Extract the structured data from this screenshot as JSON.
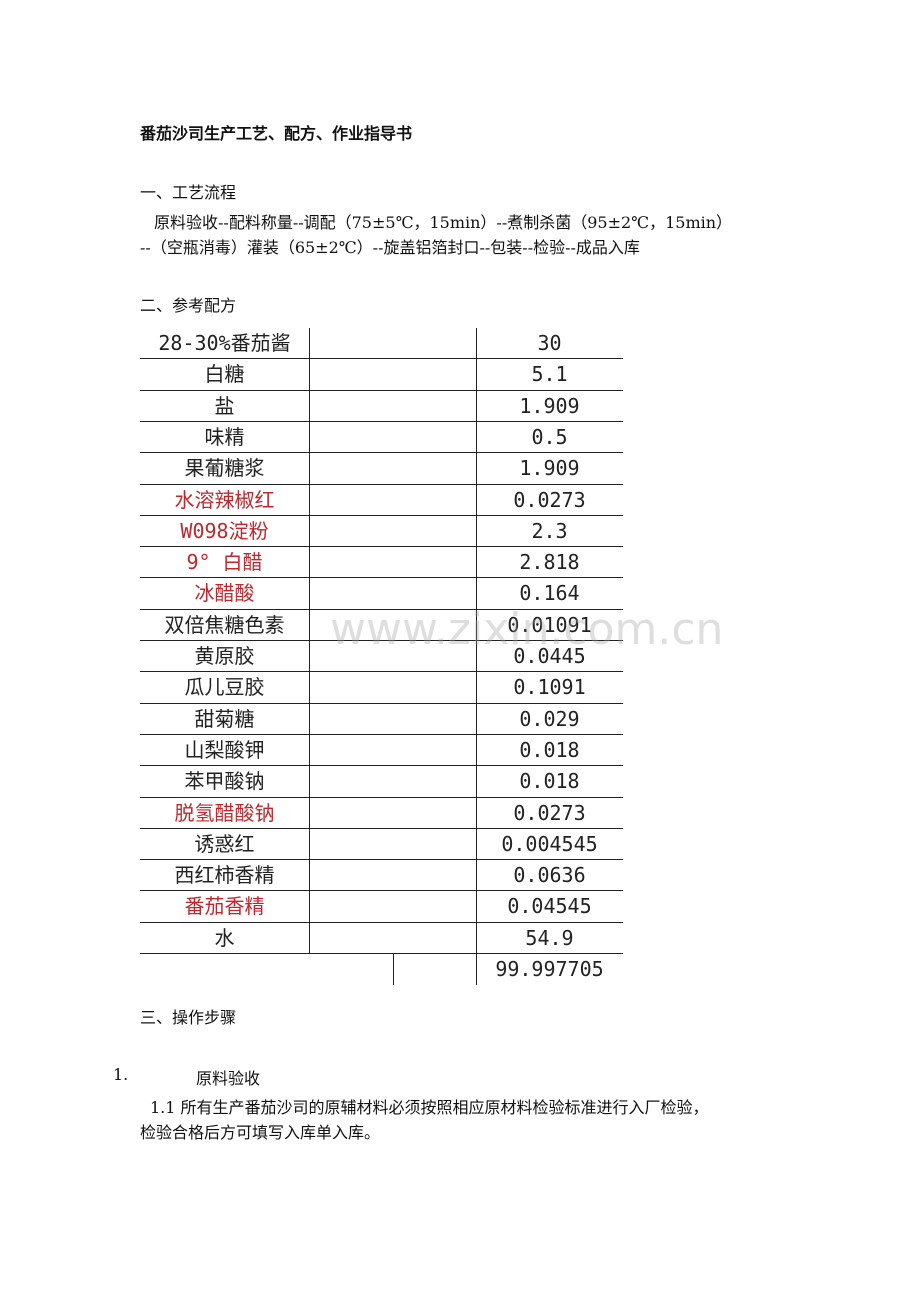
{
  "header": {
    "title": "番茄沙司生产工艺、配方、作业指导书"
  },
  "sections": [
    {
      "heading": "一、工艺流程",
      "lines": [
        "原料验收--配料称量--调配（75±5℃，15min）--煮制杀菌（95±2℃，15min）",
        "--（空瓶消毒）灌装（65±2℃）--旋盖铝箔封口--包装--检验--成品入库"
      ]
    },
    {
      "heading": "二、参考配方"
    },
    {
      "heading": "三、操作步骤"
    }
  ],
  "table": {
    "rows": [
      {
        "name": "28-30%番茄酱",
        "amount": "30"
      },
      {
        "name": "白糖",
        "amount": "5.1"
      },
      {
        "name": "盐",
        "amount": "1.909"
      },
      {
        "name": "味精",
        "amount": "0.5"
      },
      {
        "name": "果葡糖浆",
        "amount": "1.909"
      },
      {
        "name": "水溶辣椒红",
        "amount": "0.0273",
        "color": "#c0272d"
      },
      {
        "name": "W098淀粉",
        "amount": "2.3",
        "color": "#c0272d"
      },
      {
        "name": "9° 白醋",
        "amount": "2.818",
        "color": "#c0272d"
      },
      {
        "name": "冰醋酸",
        "amount": "0.164",
        "color": "#c0272d"
      },
      {
        "name": "双倍焦糖色素",
        "amount": "0.01091"
      },
      {
        "name": "黄原胶",
        "amount": "0.0445"
      },
      {
        "name": "瓜儿豆胶",
        "amount": "0.1091"
      },
      {
        "name": "甜菊糖",
        "amount": "0.029"
      },
      {
        "name": "山梨酸钾",
        "amount": "0.018"
      },
      {
        "name": "苯甲酸钠",
        "amount": "0.018"
      },
      {
        "name": "脱氢醋酸钠",
        "amount": "0.0273",
        "color": "#c0272d"
      },
      {
        "name": "诱惑红",
        "amount": "0.004545"
      },
      {
        "name": "西红柿香精",
        "amount": "0.0636"
      },
      {
        "name": "番茄香精",
        "amount": "0.04545",
        "color": "#c0272d"
      },
      {
        "name": "水",
        "amount": "54.9"
      }
    ],
    "total": "99.997705"
  },
  "steps": [
    {
      "number": "1.",
      "title": "原料验收",
      "items": [
        {
          "lines": [
            "1.1 所有生产番茄沙司的原辅材料必须按照相应原材料检验标准进行入厂检验，",
            "检验合格后方可填写入库单入库。"
          ]
        }
      ]
    }
  ],
  "watermark": "www.zixin.com.cn"
}
